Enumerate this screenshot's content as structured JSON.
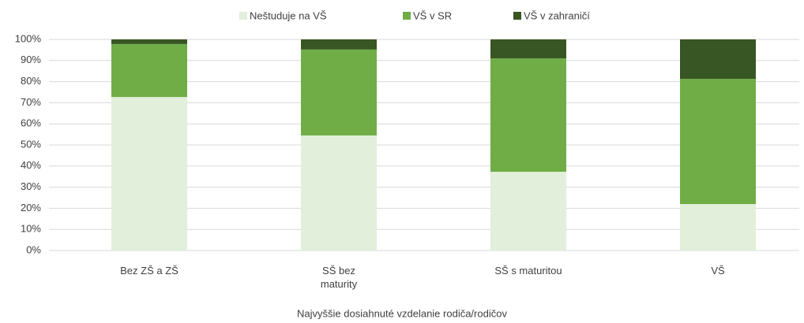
{
  "chart_data": {
    "type": "stacked_bar",
    "categories": [
      "Bez ZŠ a ZŠ",
      "SŠ bez maturity",
      "SŠ s maturitou",
      "VŠ"
    ],
    "series": [
      {
        "name": "Neštuduje na VŠ",
        "color": "#e2efda",
        "values": [
          72.7,
          54.5,
          37.3,
          22.0
        ]
      },
      {
        "name": "VŠ v SR",
        "color": "#70ad47",
        "values": [
          25.1,
          40.7,
          53.7,
          59.3
        ]
      },
      {
        "name": "VŠ v zahraničí",
        "color": "#375623",
        "values": [
          2.2,
          4.8,
          9.0,
          18.7
        ]
      }
    ],
    "ylim": [
      0,
      100
    ],
    "yticks": [
      {
        "value": 0,
        "label": "0%"
      },
      {
        "value": 10,
        "label": "10%"
      },
      {
        "value": 20,
        "label": "20%"
      },
      {
        "value": 30,
        "label": "30%"
      },
      {
        "value": 40,
        "label": "40%"
      },
      {
        "value": 50,
        "label": "50%"
      },
      {
        "value": 60,
        "label": "60%"
      },
      {
        "value": 70,
        "label": "70%"
      },
      {
        "value": 80,
        "label": "80%"
      },
      {
        "value": 90,
        "label": "90%"
      },
      {
        "value": 100,
        "label": "100%"
      }
    ],
    "xlabel": "Najvyššie dosiahnuté vzdelanie rodiča/rodičov",
    "grid": true,
    "legend": "top"
  }
}
